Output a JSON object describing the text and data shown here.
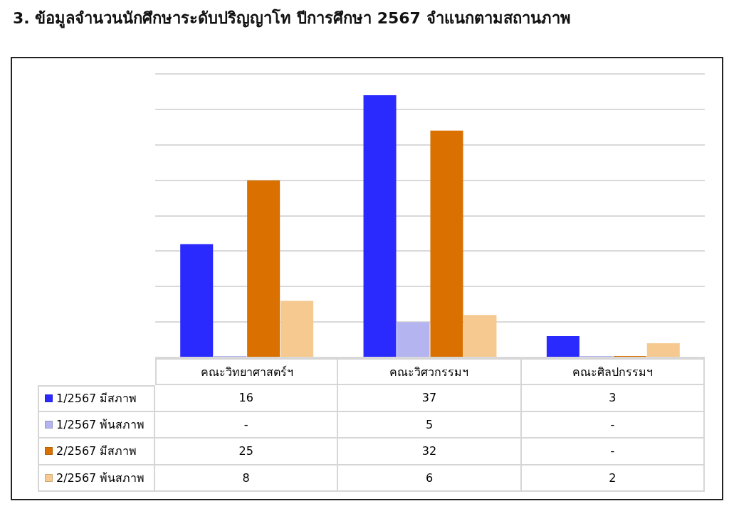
{
  "chart_data": {
    "type": "bar",
    "title": "3. ข้อมูลจำนวนนักศึกษาระดับปริญญาโท ปีการศึกษา 2567 จำแนกตามสถานภาพ",
    "categories": [
      "คณะวิทยาศาสตร์ฯ",
      "คณะวิศวกรรมฯ",
      "คณะศิลปกรรมฯ"
    ],
    "series": [
      {
        "name": "1/2567 มีสภาพ",
        "color": "#2a2aff",
        "values": [
          16,
          37,
          3
        ],
        "value_labels": [
          "16",
          "37",
          "3"
        ]
      },
      {
        "name": "1/2567 พ้นสภาพ",
        "color": "#b4b4f0",
        "values": [
          0,
          5,
          0
        ],
        "value_labels": [
          "-",
          "5",
          "-"
        ]
      },
      {
        "name": "2/2567 มีสภาพ",
        "color": "#d97000",
        "values": [
          25,
          32,
          0
        ],
        "value_labels": [
          "25",
          "32",
          "-"
        ]
      },
      {
        "name": "2/2567 พ้นสภาพ",
        "color": "#f5c98f",
        "values": [
          8,
          6,
          2
        ],
        "value_labels": [
          "8",
          "6",
          "2"
        ]
      }
    ],
    "ylim": [
      0,
      40
    ],
    "yticks": [
      {
        "value": 0,
        "label": null
      },
      {
        "value": 5,
        "label": null
      },
      {
        "value": 10,
        "label": null
      },
      {
        "value": 15,
        "label": null
      },
      {
        "value": 20,
        "label": null
      },
      {
        "value": 25,
        "label": null
      },
      {
        "value": 30,
        "label": null
      },
      {
        "value": 35,
        "label": null
      },
      {
        "value": 40,
        "label": null
      }
    ],
    "grid": "y",
    "legend": "bottom",
    "tick_labels": "x"
  }
}
